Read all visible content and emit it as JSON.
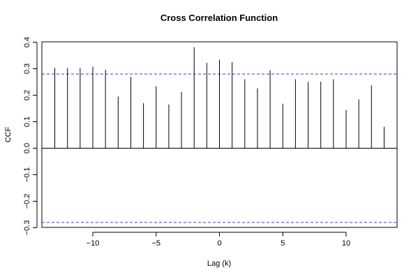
{
  "chart_data": {
    "type": "bar",
    "title": "Cross Correlation Function",
    "xlabel": "Lag (k)",
    "ylabel": "CCF",
    "xlim": [
      -14,
      14
    ],
    "ylim": [
      -0.3,
      0.4
    ],
    "x_ticks": [
      -10,
      -5,
      0,
      5,
      10
    ],
    "y_ticks": [
      -0.3,
      -0.2,
      -0.1,
      0.0,
      0.1,
      0.2,
      0.3,
      0.4
    ],
    "x_tick_labels": [
      "−10",
      "−5",
      "0",
      "5",
      "10"
    ],
    "y_tick_labels": [
      "−0.3",
      "−0.2",
      "−0.1",
      "0.0",
      "0.1",
      "0.2",
      "0.3",
      "0.4"
    ],
    "confidence_bounds": [
      0.28,
      -0.28
    ],
    "bound_color": "#3333ff",
    "grid": false,
    "series": [
      {
        "lags": [
          -13,
          -12,
          -11,
          -10,
          -9,
          -8,
          -7,
          -6,
          -5,
          -4,
          -3,
          -2,
          -1,
          0,
          1,
          2,
          3,
          4,
          5,
          6,
          7,
          8,
          9,
          10,
          11,
          12,
          13
        ],
        "values": [
          0.303,
          0.303,
          0.302,
          0.308,
          0.296,
          0.195,
          0.269,
          0.17,
          0.234,
          0.165,
          0.213,
          0.381,
          0.322,
          0.334,
          0.325,
          0.26,
          0.226,
          0.294,
          0.168,
          0.26,
          0.25,
          0.251,
          0.26,
          0.144,
          0.184,
          0.237,
          0.081
        ]
      }
    ]
  }
}
